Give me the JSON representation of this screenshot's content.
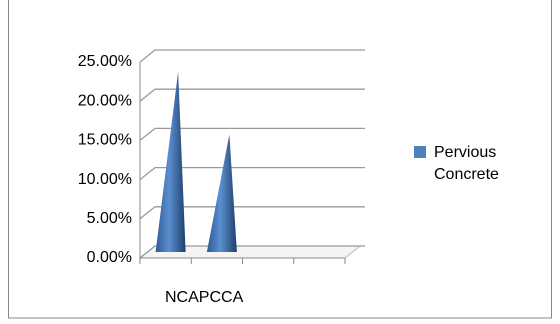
{
  "chart_data": {
    "type": "cone",
    "categories": [
      "NCA",
      "PCCA"
    ],
    "series": [
      {
        "name": "Pervious Concrete",
        "color": "#4f81bd",
        "values": [
          23,
          15
        ]
      }
    ],
    "ylim": [
      0,
      25
    ],
    "yticks": [
      {
        "value": 0,
        "label": "0.00%"
      },
      {
        "value": 5,
        "label": "5.00%"
      },
      {
        "value": 10,
        "label": "10.00%"
      },
      {
        "value": 15,
        "label": "15.00%"
      },
      {
        "value": 20,
        "label": "20.00%"
      },
      {
        "value": 25,
        "label": "25.00%"
      }
    ],
    "grid": true
  }
}
